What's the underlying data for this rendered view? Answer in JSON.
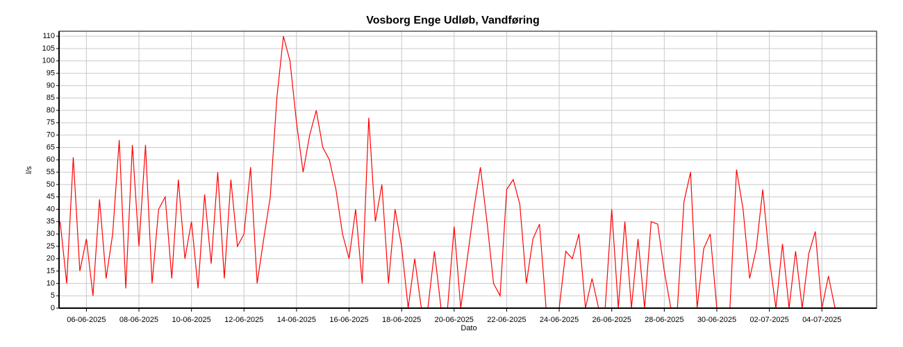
{
  "chart_data": {
    "type": "line",
    "title": "Vosborg Enge Udløb, Vandføring",
    "x_label": "Dato",
    "y_label": "l/s",
    "x": [
      "2025-06-05T00:00",
      "2025-06-05T06:00",
      "2025-06-05T12:00",
      "2025-06-05T18:00",
      "2025-06-06T00:00",
      "2025-06-06T06:00",
      "2025-06-06T12:00",
      "2025-06-06T18:00",
      "2025-06-07T00:00",
      "2025-06-07T06:00",
      "2025-06-07T12:00",
      "2025-06-07T18:00",
      "2025-06-08T00:00",
      "2025-06-08T06:00",
      "2025-06-08T12:00",
      "2025-06-08T18:00",
      "2025-06-09T00:00",
      "2025-06-09T06:00",
      "2025-06-09T12:00",
      "2025-06-09T18:00",
      "2025-06-10T00:00",
      "2025-06-10T06:00",
      "2025-06-10T12:00",
      "2025-06-10T18:00",
      "2025-06-11T00:00",
      "2025-06-11T06:00",
      "2025-06-11T12:00",
      "2025-06-11T18:00",
      "2025-06-12T00:00",
      "2025-06-12T06:00",
      "2025-06-12T12:00",
      "2025-06-12T18:00",
      "2025-06-13T00:00",
      "2025-06-13T06:00",
      "2025-06-13T12:00",
      "2025-06-13T18:00",
      "2025-06-14T00:00",
      "2025-06-14T06:00",
      "2025-06-14T12:00",
      "2025-06-14T18:00",
      "2025-06-15T00:00",
      "2025-06-15T06:00",
      "2025-06-15T12:00",
      "2025-06-15T18:00",
      "2025-06-16T00:00",
      "2025-06-16T06:00",
      "2025-06-16T12:00",
      "2025-06-16T18:00",
      "2025-06-17T00:00",
      "2025-06-17T06:00",
      "2025-06-17T12:00",
      "2025-06-17T18:00",
      "2025-06-18T00:00",
      "2025-06-18T06:00",
      "2025-06-18T12:00",
      "2025-06-18T18:00",
      "2025-06-19T00:00",
      "2025-06-19T06:00",
      "2025-06-19T12:00",
      "2025-06-19T18:00",
      "2025-06-20T00:00",
      "2025-06-20T06:00",
      "2025-06-20T12:00",
      "2025-06-20T18:00",
      "2025-06-21T00:00",
      "2025-06-21T06:00",
      "2025-06-21T12:00",
      "2025-06-21T18:00",
      "2025-06-22T00:00",
      "2025-06-22T06:00",
      "2025-06-22T12:00",
      "2025-06-22T18:00",
      "2025-06-23T00:00",
      "2025-06-23T06:00",
      "2025-06-23T12:00",
      "2025-06-23T18:00",
      "2025-06-24T00:00",
      "2025-06-24T06:00",
      "2025-06-24T12:00",
      "2025-06-24T18:00",
      "2025-06-25T00:00",
      "2025-06-25T06:00",
      "2025-06-25T12:00",
      "2025-06-25T18:00",
      "2025-06-26T00:00",
      "2025-06-26T06:00",
      "2025-06-26T12:00",
      "2025-06-26T18:00",
      "2025-06-27T00:00",
      "2025-06-27T06:00",
      "2025-06-27T12:00",
      "2025-06-27T18:00",
      "2025-06-28T00:00",
      "2025-06-28T06:00",
      "2025-06-28T12:00",
      "2025-06-28T18:00",
      "2025-06-29T00:00",
      "2025-06-29T06:00",
      "2025-06-29T12:00",
      "2025-06-29T18:00",
      "2025-06-30T00:00",
      "2025-06-30T06:00",
      "2025-06-30T12:00",
      "2025-06-30T18:00",
      "2025-07-01T00:00",
      "2025-07-01T06:00",
      "2025-07-01T12:00",
      "2025-07-01T18:00",
      "2025-07-02T00:00",
      "2025-07-02T06:00",
      "2025-07-02T12:00",
      "2025-07-02T18:00",
      "2025-07-03T00:00",
      "2025-07-03T06:00",
      "2025-07-03T12:00",
      "2025-07-03T18:00",
      "2025-07-04T00:00",
      "2025-07-04T06:00",
      "2025-07-04T12:00"
    ],
    "series": [
      {
        "color": "#ff0000",
        "values": [
          35,
          10,
          61,
          15,
          28,
          5,
          44,
          12,
          30,
          68,
          8,
          66,
          25,
          66,
          10,
          40,
          45,
          12,
          52,
          20,
          35,
          8,
          46,
          18,
          55,
          12,
          52,
          25,
          30,
          57,
          10,
          28,
          45,
          85,
          110,
          100,
          75,
          55,
          70,
          80,
          65,
          60,
          48,
          30,
          20,
          40,
          10,
          77,
          35,
          50,
          10,
          40,
          25,
          0,
          20,
          0,
          0,
          23,
          0,
          0,
          33,
          0,
          20,
          40,
          57,
          35,
          10,
          5,
          48,
          52,
          42,
          10,
          28,
          34,
          0,
          0,
          0,
          23,
          20,
          30,
          0,
          12,
          0,
          0,
          40,
          0,
          35,
          0,
          28,
          0,
          35,
          34,
          15,
          0,
          0,
          43,
          55,
          0,
          24,
          30,
          0,
          0,
          0,
          56,
          40,
          12,
          24,
          48,
          20,
          0,
          26,
          0,
          23,
          0,
          22,
          31,
          0,
          13,
          0
        ]
      }
    ],
    "xlim": [
      "2025-06-04T23:00",
      "2025-07-06T02:00"
    ],
    "xticks": [
      {
        "value": "2025-06-06T00:00",
        "label": "06-06-2025"
      },
      {
        "value": "2025-06-08T00:00",
        "label": "08-06-2025"
      },
      {
        "value": "2025-06-10T00:00",
        "label": "10-06-2025"
      },
      {
        "value": "2025-06-12T00:00",
        "label": "12-06-2025"
      },
      {
        "value": "2025-06-14T00:00",
        "label": "14-06-2025"
      },
      {
        "value": "2025-06-16T00:00",
        "label": "16-06-2025"
      },
      {
        "value": "2025-06-18T00:00",
        "label": "18-06-2025"
      },
      {
        "value": "2025-06-20T00:00",
        "label": "20-06-2025"
      },
      {
        "value": "2025-06-22T00:00",
        "label": "22-06-2025"
      },
      {
        "value": "2025-06-24T00:00",
        "label": "24-06-2025"
      },
      {
        "value": "2025-06-26T00:00",
        "label": "26-06-2025"
      },
      {
        "value": "2025-06-28T00:00",
        "label": "28-06-2025"
      },
      {
        "value": "2025-06-30T00:00",
        "label": "30-06-2025"
      },
      {
        "value": "2025-07-02T00:00",
        "label": "02-07-2025"
      },
      {
        "value": "2025-07-04T00:00",
        "label": "04-07-2025"
      }
    ],
    "ylim": [
      0,
      112
    ],
    "yticks": [
      0,
      5,
      10,
      15,
      20,
      25,
      30,
      35,
      40,
      45,
      50,
      55,
      60,
      65,
      70,
      75,
      80,
      85,
      90,
      95,
      100,
      105,
      110
    ],
    "grid": true
  }
}
